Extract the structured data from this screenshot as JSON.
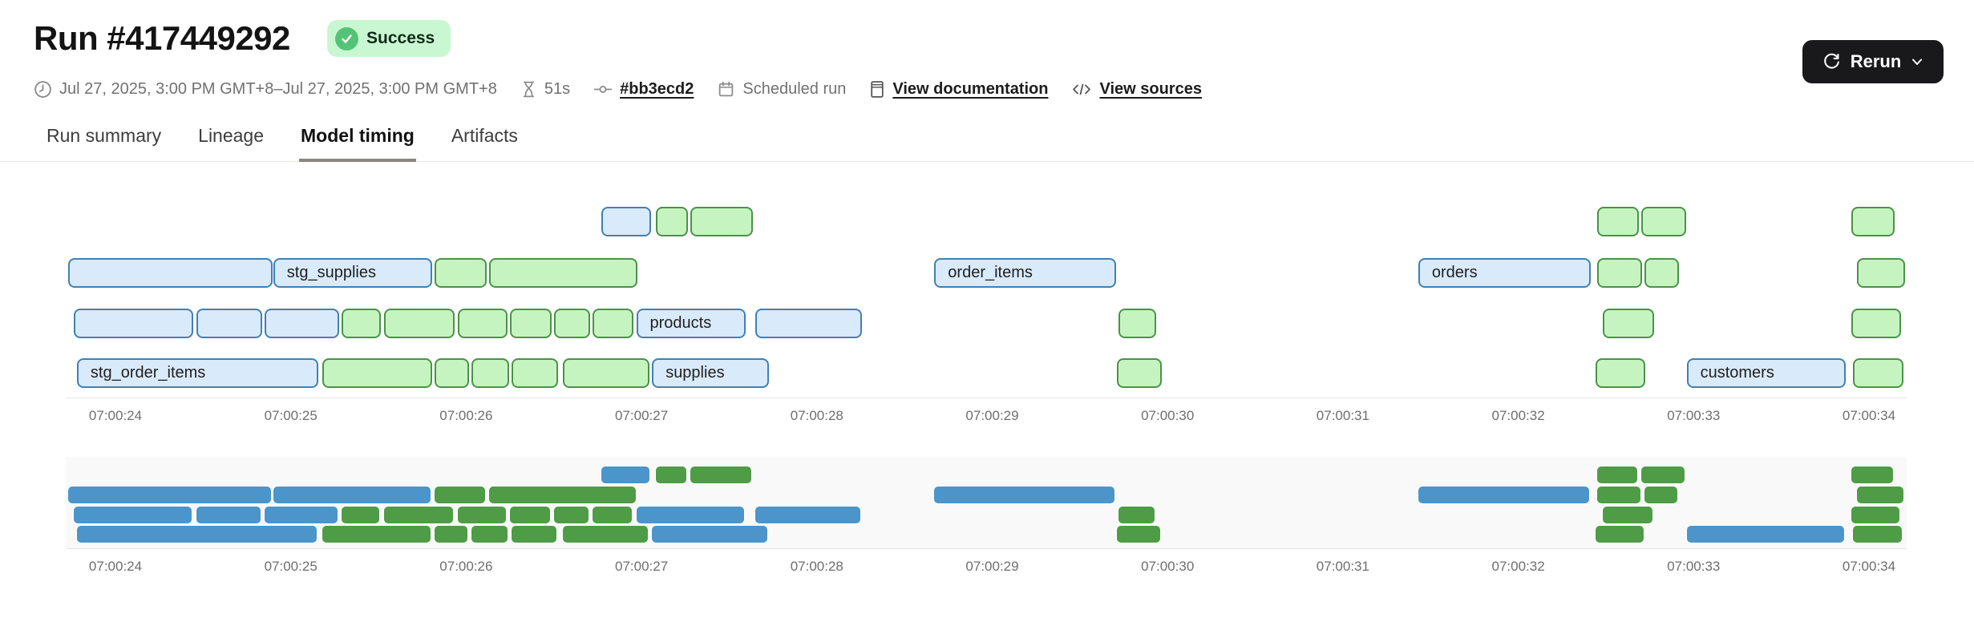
{
  "header": {
    "title": "Run #417449292",
    "status_badge": "Success",
    "rerun_label": "Rerun",
    "meta": {
      "date_range": "Jul 27, 2025, 3:00 PM GMT+8–Jul 27, 2025, 3:00 PM GMT+8",
      "duration": "51s",
      "commit": "#bb3ecd2",
      "trigger": "Scheduled run",
      "docs_link": "View documentation",
      "sources_link": "View sources"
    }
  },
  "tabs": [
    {
      "label": "Run summary",
      "active": false
    },
    {
      "label": "Lineage",
      "active": false
    },
    {
      "label": "Model timing",
      "active": true
    },
    {
      "label": "Artifacts",
      "active": false
    }
  ],
  "colors": {
    "detail_blue_fill": "#d9eafa",
    "detail_blue_border": "#4080b5",
    "detail_green_fill": "#c6f4c1",
    "detail_green_border": "#4a9347",
    "overview_blue": "#4b95cb",
    "overview_green": "#4f9c46",
    "status_badge_bg": "#c8f7d1",
    "status_badge_icon": "#55c377",
    "rerun_bg": "#19191b",
    "active_tab_underline": "#8b857e"
  },
  "chart_data": {
    "type": "gantt",
    "title": "Model timing",
    "time_unit": "seconds after 07:00:00",
    "x_domain_seconds": [
      23.6,
      34.4
    ],
    "x_ticks": [
      "07:00:24",
      "07:00:25",
      "07:00:26",
      "07:00:27",
      "07:00:28",
      "07:00:29",
      "07:00:30",
      "07:00:31",
      "07:00:32",
      "07:00:33",
      "07:00:34"
    ],
    "tick_seconds": [
      24,
      25,
      26,
      27,
      28,
      29,
      30,
      31,
      32,
      33,
      34
    ],
    "views": [
      {
        "name": "detail",
        "labeled": true,
        "style": "outlined pastel bars"
      },
      {
        "name": "overview",
        "labeled": false,
        "style": "solid compact bars"
      }
    ],
    "rows": [
      {
        "bars": [
          {
            "start": 26.77,
            "end": 27.06,
            "color": "blue"
          },
          {
            "start": 27.08,
            "end": 27.27,
            "color": "green"
          },
          {
            "start": 27.28,
            "end": 27.64,
            "color": "green"
          },
          {
            "start": 32.45,
            "end": 32.69,
            "color": "green"
          },
          {
            "start": 32.7,
            "end": 32.96,
            "color": "green"
          },
          {
            "start": 33.9,
            "end": 34.15,
            "color": "green"
          }
        ]
      },
      {
        "bars": [
          {
            "start": 23.73,
            "end": 24.9,
            "color": "blue"
          },
          {
            "start": 24.9,
            "end": 25.81,
            "color": "blue",
            "label": "stg_supplies"
          },
          {
            "start": 25.82,
            "end": 26.12,
            "color": "green"
          },
          {
            "start": 26.13,
            "end": 26.98,
            "color": "green"
          },
          {
            "start": 28.67,
            "end": 29.71,
            "color": "blue",
            "label": "order_items"
          },
          {
            "start": 31.43,
            "end": 32.42,
            "color": "blue",
            "label": "orders"
          },
          {
            "start": 32.45,
            "end": 32.71,
            "color": "green"
          },
          {
            "start": 32.72,
            "end": 32.92,
            "color": "green"
          },
          {
            "start": 33.93,
            "end": 34.21,
            "color": "green"
          }
        ]
      },
      {
        "bars": [
          {
            "start": 23.76,
            "end": 24.45,
            "color": "blue"
          },
          {
            "start": 24.46,
            "end": 24.84,
            "color": "blue"
          },
          {
            "start": 24.85,
            "end": 25.28,
            "color": "blue"
          },
          {
            "start": 25.29,
            "end": 25.52,
            "color": "green"
          },
          {
            "start": 25.53,
            "end": 25.94,
            "color": "green"
          },
          {
            "start": 25.95,
            "end": 26.24,
            "color": "green"
          },
          {
            "start": 26.25,
            "end": 26.49,
            "color": "green"
          },
          {
            "start": 26.5,
            "end": 26.71,
            "color": "green"
          },
          {
            "start": 26.72,
            "end": 26.96,
            "color": "green"
          },
          {
            "start": 26.97,
            "end": 27.6,
            "color": "blue",
            "label": "products"
          },
          {
            "start": 27.65,
            "end": 28.26,
            "color": "blue"
          },
          {
            "start": 29.72,
            "end": 29.94,
            "color": "green"
          },
          {
            "start": 32.48,
            "end": 32.78,
            "color": "green"
          },
          {
            "start": 33.9,
            "end": 34.19,
            "color": "green"
          }
        ]
      },
      {
        "bars": [
          {
            "start": 23.78,
            "end": 25.16,
            "color": "blue",
            "label": "stg_order_items"
          },
          {
            "start": 25.18,
            "end": 25.81,
            "color": "green"
          },
          {
            "start": 25.82,
            "end": 26.02,
            "color": "green"
          },
          {
            "start": 26.03,
            "end": 26.25,
            "color": "green"
          },
          {
            "start": 26.26,
            "end": 26.53,
            "color": "green"
          },
          {
            "start": 26.55,
            "end": 27.05,
            "color": "green"
          },
          {
            "start": 27.06,
            "end": 27.73,
            "color": "blue",
            "label": "supplies"
          },
          {
            "start": 29.71,
            "end": 29.97,
            "color": "green"
          },
          {
            "start": 32.44,
            "end": 32.73,
            "color": "green"
          },
          {
            "start": 32.96,
            "end": 33.87,
            "color": "blue",
            "label": "customers"
          },
          {
            "start": 33.91,
            "end": 34.2,
            "color": "green"
          }
        ]
      }
    ]
  }
}
